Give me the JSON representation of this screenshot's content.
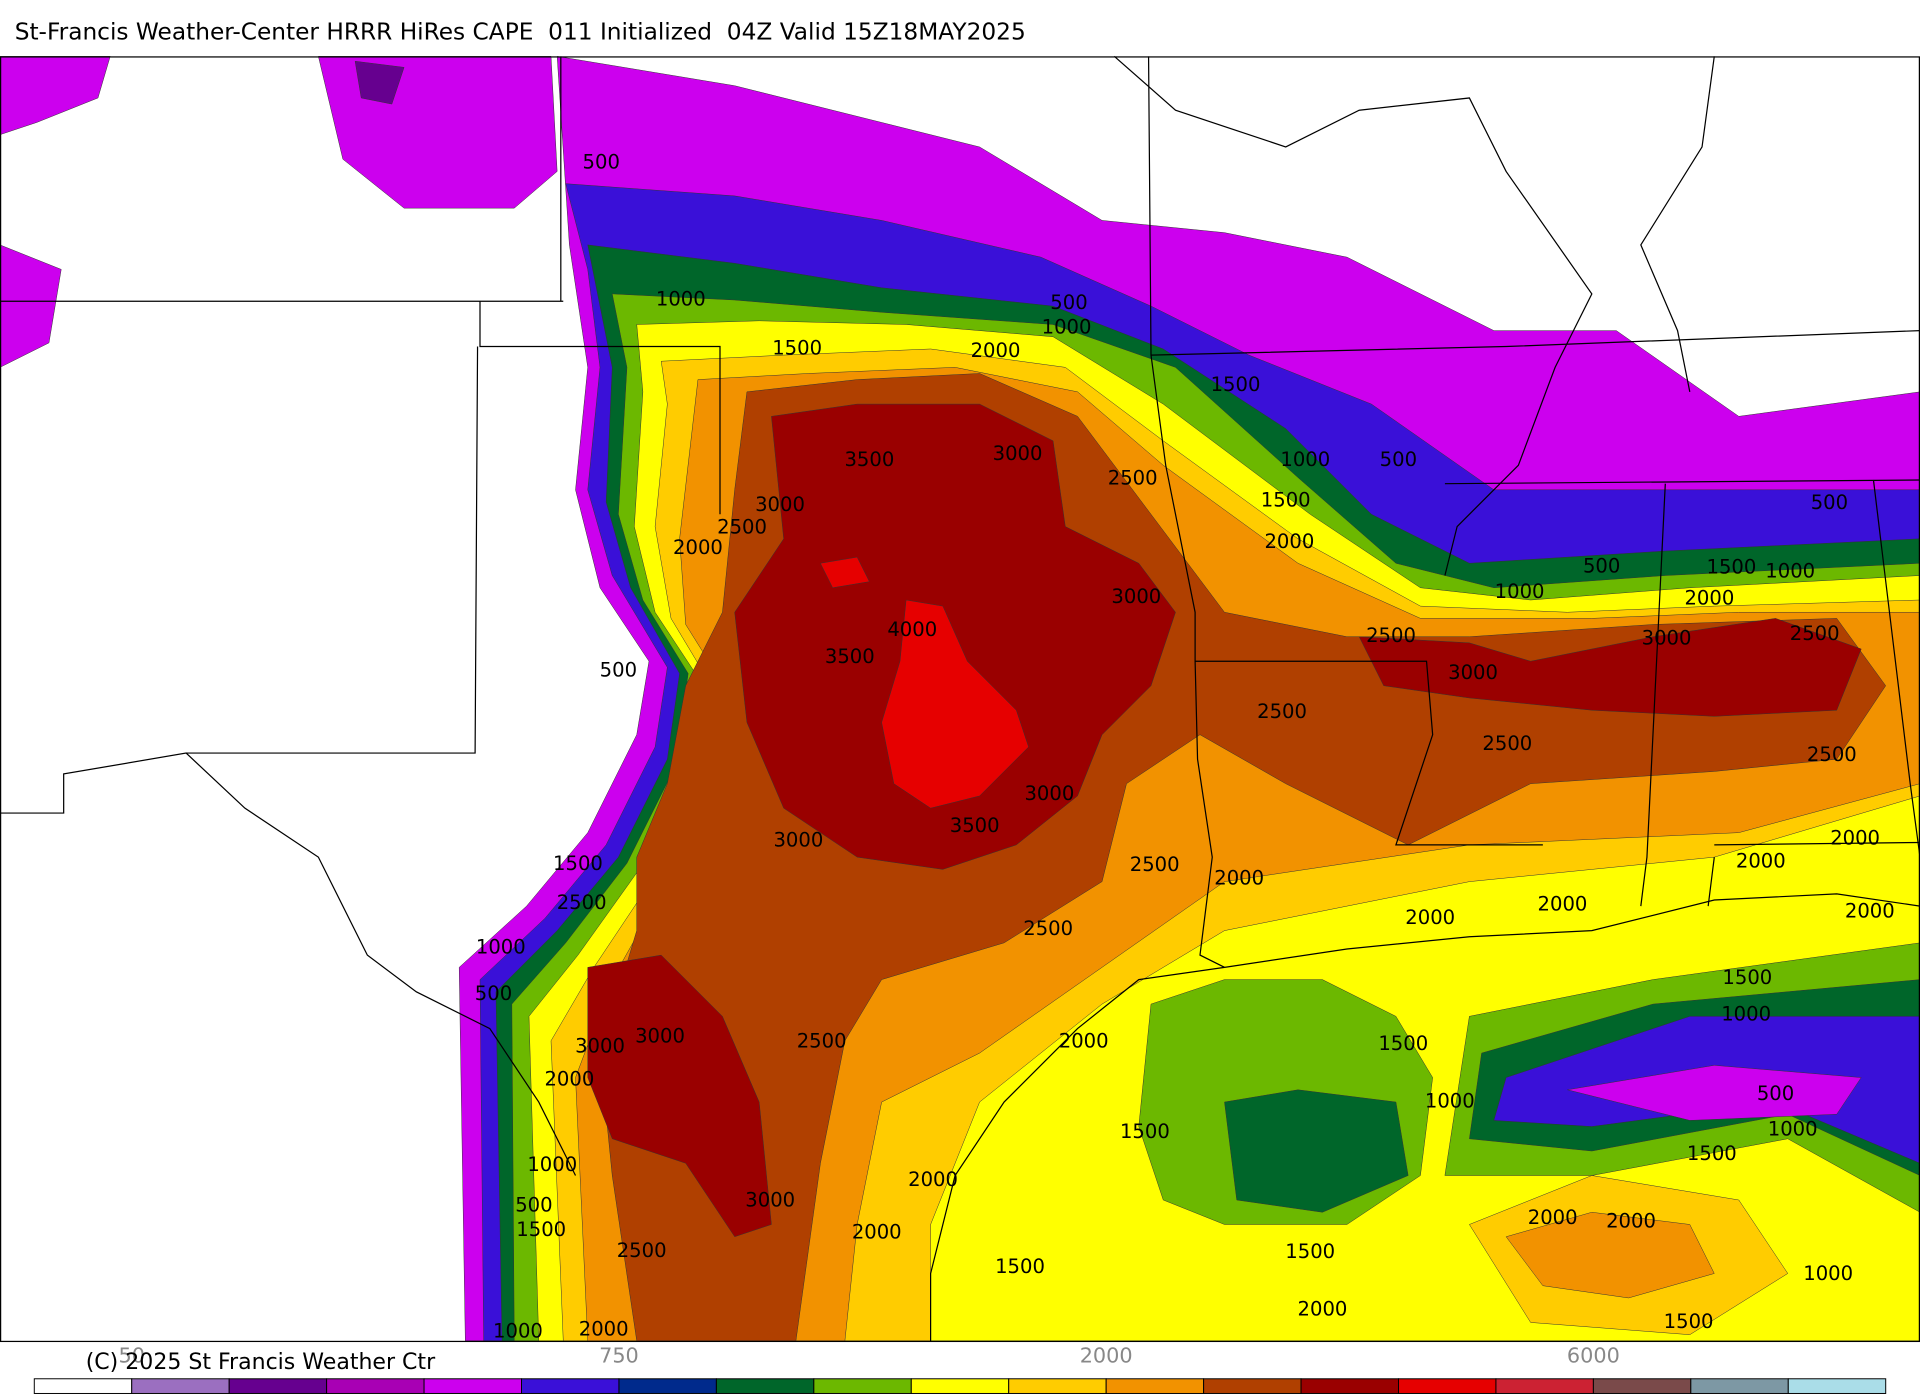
{
  "header": {
    "title": "St-Francis Weather-Center HRRR HiRes CAPE  011 Initialized  04Z Valid 15Z18MAY2025"
  },
  "contour_labels": [
    "500",
    "1000",
    "500",
    "1000",
    "1500",
    "2000",
    "1500",
    "3500",
    "3000",
    "2500",
    "1000",
    "500",
    "1500",
    "3000",
    "2500",
    "2000",
    "2000",
    "500",
    "500",
    "1500",
    "1000",
    "1000",
    "2000",
    "3000",
    "4000",
    "2500",
    "3000",
    "2500",
    "3500",
    "3000",
    "500",
    "2500",
    "2500",
    "2500",
    "3000",
    "3500",
    "3000",
    "2000",
    "1500",
    "2500",
    "2000",
    "2000",
    "2500",
    "2000",
    "2000",
    "2000",
    "2500",
    "1000",
    "1500",
    "500",
    "1000",
    "3000",
    "3000",
    "2500",
    "2000",
    "1500",
    "2000",
    "1000",
    "500",
    "1500",
    "1000",
    "1500",
    "1000",
    "2000",
    "3000",
    "500",
    "1500",
    "2000",
    "2000",
    "2000",
    "2500",
    "1500",
    "1500",
    "1000",
    "2000",
    "1500",
    "1000",
    "2000"
  ],
  "colorbar": {
    "colors": [
      "#ffffff",
      "#9b6fc0",
      "#66008f",
      "#a800b4",
      "#cc00ee",
      "#3a10d8",
      "#002a8c",
      "#00662a",
      "#6cb800",
      "#ffff00",
      "#ffcc00",
      "#f29200",
      "#b04000",
      "#9a0000",
      "#e60000",
      "#cc2233",
      "#7a4a4a",
      "#7d98a4",
      "#aadde8"
    ],
    "labels": [
      "50",
      "750",
      "2000",
      "6000"
    ]
  },
  "footer": {
    "copyright": "(C) 2025 St Francis Weather Ctr"
  }
}
